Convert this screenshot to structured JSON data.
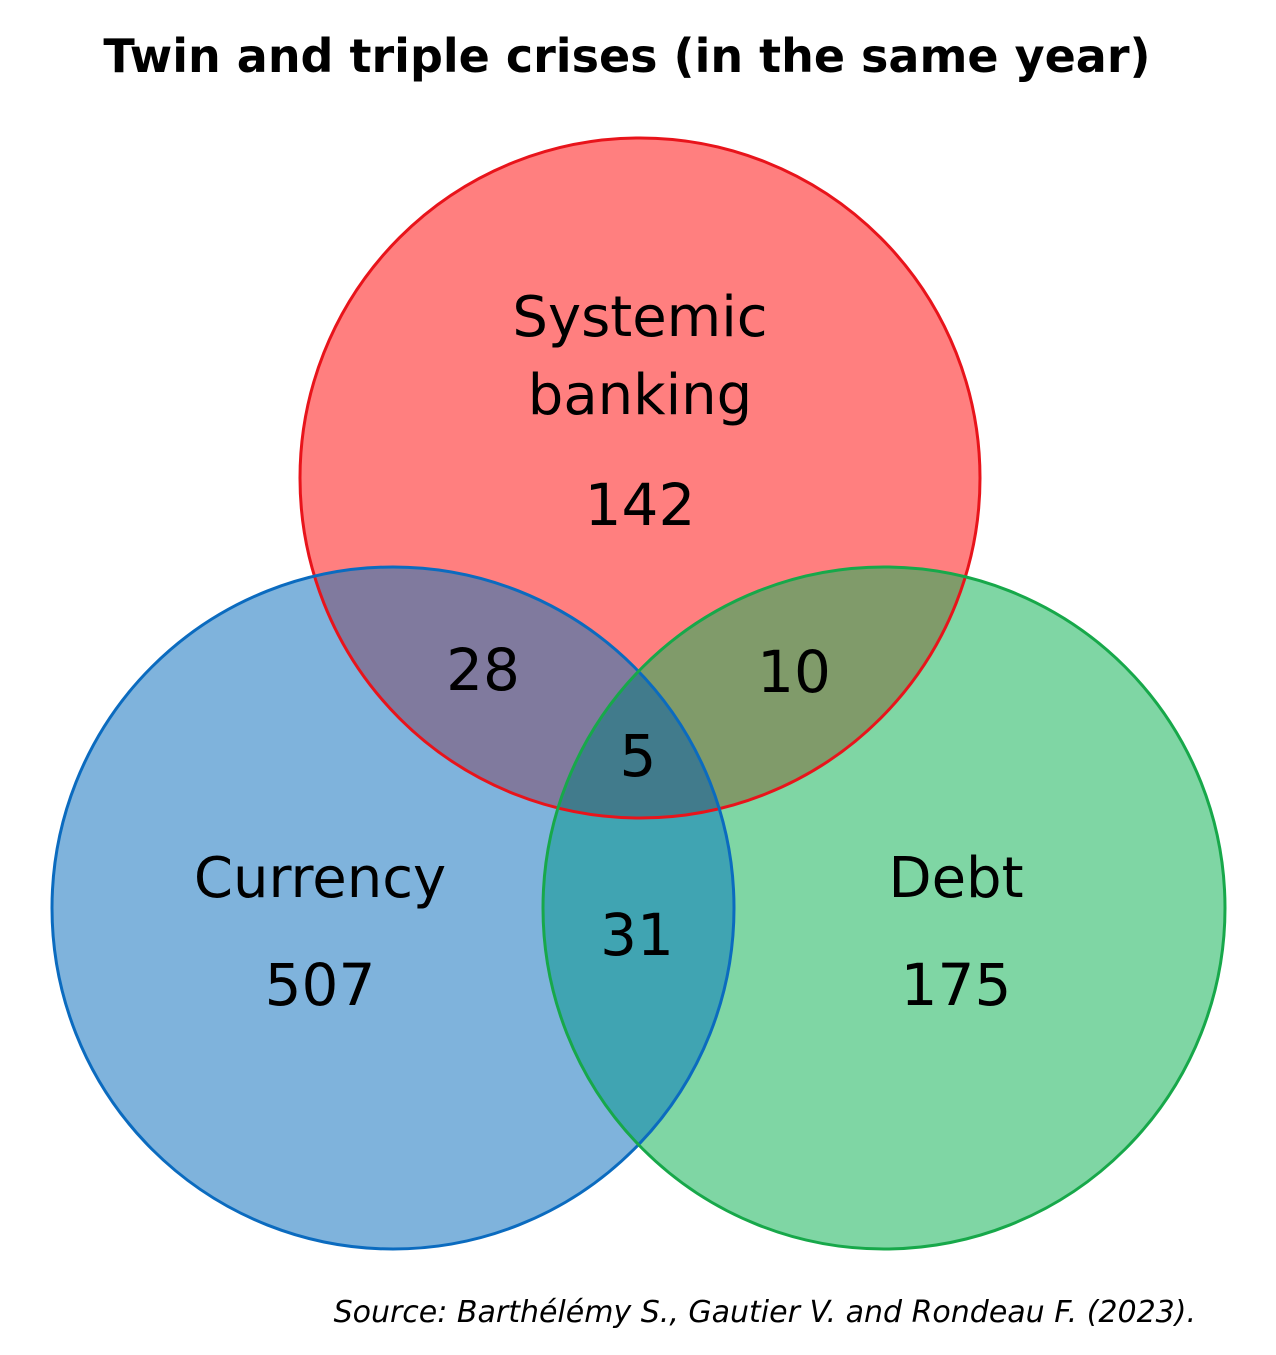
{
  "title": "Twin and triple crises (in the same year)",
  "sets": {
    "banking": {
      "label_line1": "Systemic",
      "label_line2": "banking",
      "count": "142",
      "fill": "#ff7f7f",
      "stroke": "#e8141b"
    },
    "currency": {
      "label": "Currency",
      "count": "507",
      "fill": "#7fb3dc",
      "stroke": "#0b6bbf"
    },
    "debt": {
      "label": "Debt",
      "count": "175",
      "fill": "#7fd6a4",
      "stroke": "#17a84a"
    }
  },
  "intersections": {
    "banking_currency": {
      "count": "28",
      "fill": "#807a9e"
    },
    "banking_debt": {
      "count": "10",
      "fill": "#809b6a"
    },
    "currency_debt": {
      "count": "31",
      "fill": "#40a4b2"
    },
    "all_three": {
      "count": "5",
      "fill": "#417b8c"
    }
  },
  "source": "Source: Barthélémy S., Gautier V. and Rondeau F. (2023)."
}
